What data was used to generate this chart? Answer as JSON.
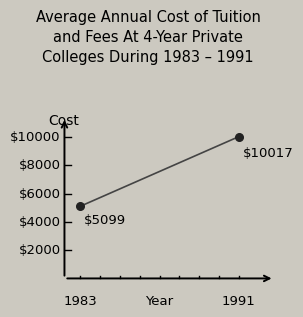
{
  "title": "Average Annual Cost of Tuition\nand Fees At 4-Year Private\nColleges During 1983 – 1991",
  "x": [
    1983,
    1991
  ],
  "y": [
    5099,
    10017
  ],
  "xlabel": "Year",
  "ylabel": "Cost",
  "yticks": [
    2000,
    4000,
    6000,
    8000,
    10000
  ],
  "ytick_labels": [
    "$2000",
    "$4000",
    "$6000",
    "$8000",
    "$10000"
  ],
  "ylim": [
    0,
    11500
  ],
  "annotation_1983": "$5099",
  "annotation_1991": "$10017",
  "line_color": "#444444",
  "dot_color": "#222222",
  "background_color": "#ccc9c0",
  "title_fontsize": 10.5,
  "tick_fontsize": 9.5
}
